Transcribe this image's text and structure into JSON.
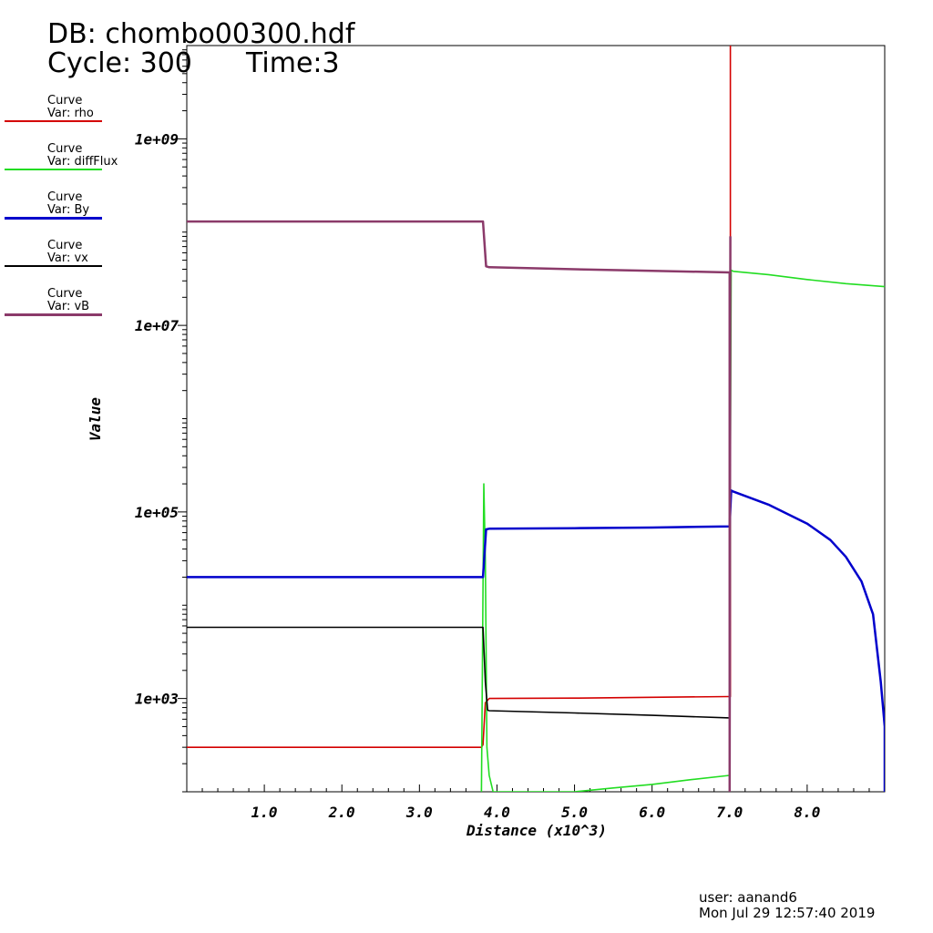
{
  "header": {
    "db_title": "DB: chombo00300.hdf",
    "cycle": "Cycle: 300",
    "time": "Time:3"
  },
  "legend": [
    {
      "title": "Curve",
      "var": "Var: rho",
      "color": "#d40000"
    },
    {
      "title": "Curve",
      "var": "Var: diffFlux",
      "color": "#22dd22"
    },
    {
      "title": "Curve",
      "var": "Var: By",
      "color": "#0000cc"
    },
    {
      "title": "Curve",
      "var": "Var: vx",
      "color": "#000000"
    },
    {
      "title": "Curve",
      "var": "Var: vB",
      "color": "#8b3a6a"
    }
  ],
  "footer": {
    "user": "user: aanand6",
    "date": "Mon Jul 29 12:57:40 2019"
  },
  "chart_data": {
    "type": "line",
    "xlabel": "Distance (x10^3)",
    "ylabel": "Value",
    "xlim": [
      0,
      9.0
    ],
    "ylim": [
      100,
      10000000000
    ],
    "yscale": "log",
    "x_ticks": [
      {
        "value": 1,
        "label": "1.0"
      },
      {
        "value": 2,
        "label": "2.0"
      },
      {
        "value": 3,
        "label": "3.0"
      },
      {
        "value": 4,
        "label": "4.0"
      },
      {
        "value": 5,
        "label": "5.0"
      },
      {
        "value": 6,
        "label": "6.0"
      },
      {
        "value": 7,
        "label": "7.0"
      },
      {
        "value": 8,
        "label": "8.0"
      }
    ],
    "y_ticks": [
      {
        "value": 1000,
        "label": "1e+03"
      },
      {
        "value": 100000,
        "label": "1e+05"
      },
      {
        "value": 10000000,
        "label": "1e+07"
      },
      {
        "value": 1000000000,
        "label": "1e+09"
      }
    ],
    "series": [
      {
        "name": "Var: rho",
        "color": "#d40000",
        "x": [
          0,
          3.8,
          3.82,
          3.85,
          3.9,
          5.0,
          6.0,
          7.0,
          7.01,
          7.01,
          7.02
        ],
        "y": [
          300,
          300,
          320,
          900,
          1000,
          1010,
          1030,
          1050,
          1050,
          10000000000,
          10000000000
        ]
      },
      {
        "name": "Var: diffFlux",
        "color": "#22dd22",
        "x": [
          3.8,
          3.83,
          3.85,
          3.87,
          3.9,
          3.95,
          5.0,
          5.5,
          6.0,
          6.5,
          7.0,
          7.01,
          7.02,
          7.05,
          7.5,
          8.0,
          8.5,
          9.0
        ],
        "y": [
          100,
          200000,
          30000,
          300,
          150,
          100,
          100,
          110,
          120,
          135,
          150,
          300000,
          39000000,
          38000000,
          35000000,
          31000000,
          28000000,
          26000000
        ]
      },
      {
        "name": "Var: By",
        "color": "#0000cc",
        "x": [
          0,
          3.82,
          3.86,
          3.9,
          5.0,
          6.0,
          7.0,
          7.02,
          7.05,
          7.5,
          8.0,
          8.3,
          8.5,
          8.7,
          8.85,
          8.95,
          9.0,
          9.0
        ],
        "y": [
          20000,
          20000,
          65000,
          66000,
          67000,
          68000,
          70000,
          170000,
          165000,
          120000,
          75000,
          50000,
          33000,
          18000,
          8000,
          1500,
          500,
          100
        ]
      },
      {
        "name": "Var: vx",
        "color": "#000000",
        "x": [
          0,
          3.82,
          3.85,
          3.88,
          3.9,
          5.0,
          6.0,
          7.0
        ],
        "y": [
          5800,
          5800,
          1500,
          750,
          740,
          700,
          660,
          620
        ]
      },
      {
        "name": "Var: vB",
        "color": "#8b3a6a",
        "x": [
          0,
          3.82,
          3.86,
          3.9,
          5.0,
          6.0,
          7.0,
          7.0,
          7.01
        ],
        "y": [
          130000000,
          130000000,
          43000000,
          42000000,
          40000000,
          38500000,
          37000000,
          100,
          90000000
        ]
      }
    ]
  }
}
